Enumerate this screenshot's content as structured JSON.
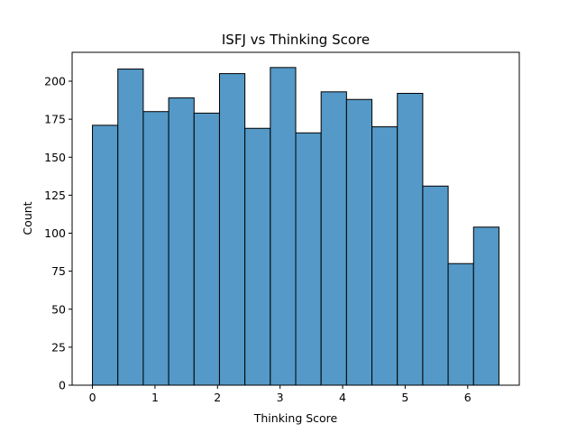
{
  "chart_data": {
    "type": "bar",
    "title": "ISFJ vs Thinking Score",
    "xlabel": "Thinking Score",
    "ylabel": "Count",
    "xlim": [
      -0.325,
      6.825
    ],
    "ylim": [
      0,
      219
    ],
    "xticks": [
      0,
      1,
      2,
      3,
      4,
      5,
      6
    ],
    "yticks": [
      0,
      25,
      50,
      75,
      100,
      125,
      150,
      175,
      200
    ],
    "bin_edges": [
      0,
      0.40625,
      0.8125,
      1.21875,
      1.625,
      2.03125,
      2.4375,
      2.84375,
      3.25,
      3.65625,
      4.0625,
      4.46875,
      4.875,
      5.28125,
      5.6875,
      6.09375,
      6.5
    ],
    "values": [
      171,
      208,
      180,
      189,
      179,
      205,
      169,
      209,
      166,
      193,
      188,
      170,
      192,
      131,
      80,
      104
    ],
    "bar_color": "#5499c7",
    "edge_color": "#000000",
    "grid": false
  }
}
